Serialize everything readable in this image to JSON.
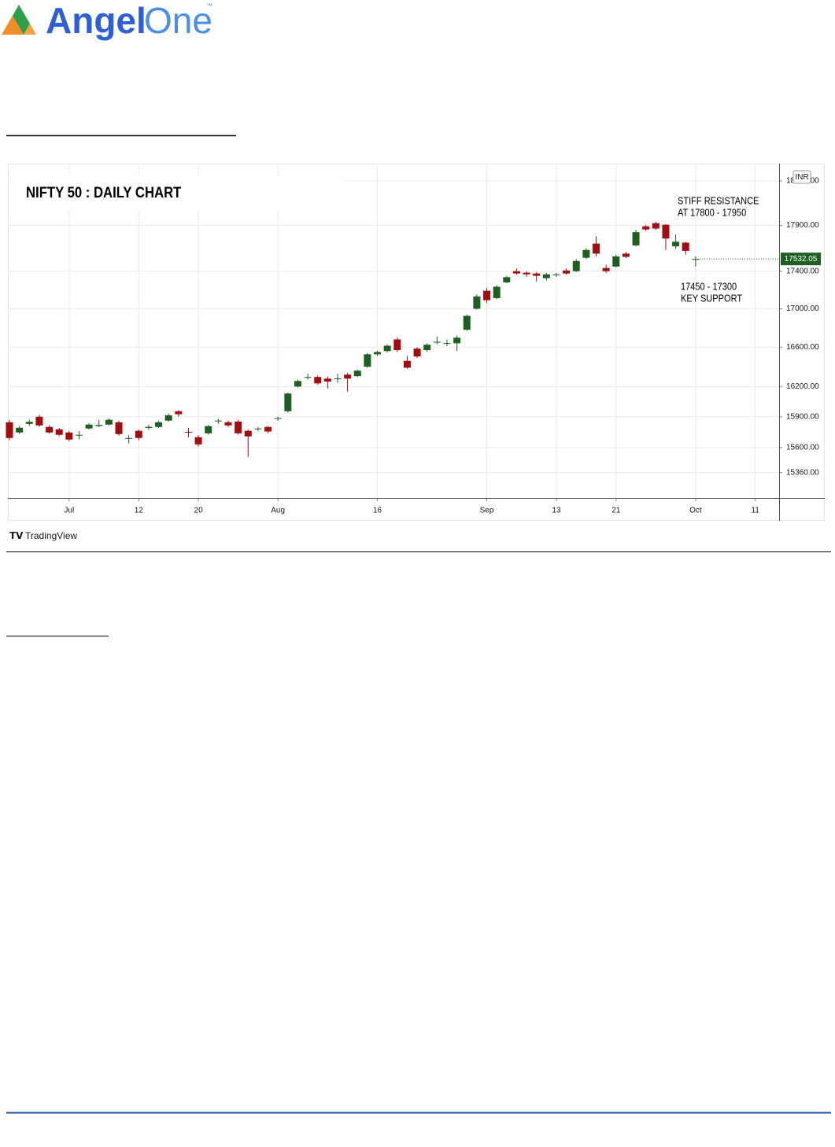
{
  "header": {
    "logo": {
      "part1": "Angel",
      "part2": "One",
      "mark": "™"
    }
  },
  "chart_data": {
    "type": "candlestick",
    "title": "NIFTY 50 : DAILY CHART",
    "annotations": [
      {
        "lines": [
          "STIFF RESISTANCE",
          "AT 17800 - 17950"
        ]
      },
      {
        "lines": [
          "17450 - 17300",
          "KEY SUPPORT"
        ]
      }
    ],
    "currency": "INR",
    "last_price": 17532.05,
    "open": [
      15846,
      15746,
      15830,
      15900,
      15800,
      15777,
      15746,
      15720,
      15785,
      15810,
      15823,
      15846,
      15685,
      15762,
      15790,
      15800,
      15862,
      15955,
      15752,
      15700,
      15738,
      15855,
      15846,
      15853,
      15762,
      15778,
      15800,
      15880,
      15955,
      16200,
      16290,
      16296,
      16280,
      16275,
      16320,
      16305,
      16400,
      16527,
      16560,
      16680,
      16460,
      16585,
      16570,
      16650,
      16638,
      16640,
      16780,
      17000,
      17190,
      17112,
      17280,
      17400,
      17384,
      17375,
      17325,
      17360,
      17408,
      17400,
      17545,
      17700,
      17434,
      17450,
      17590,
      17680,
      17890,
      17925,
      17908,
      17670,
      17710,
      17530
    ],
    "high": [
      15870,
      15810,
      15870,
      15920,
      15815,
      15790,
      15760,
      15760,
      15835,
      15870,
      15885,
      15860,
      15720,
      15775,
      15820,
      15860,
      15930,
      15965,
      15790,
      15720,
      15820,
      15880,
      15860,
      15870,
      15775,
      15800,
      15810,
      15900,
      16140,
      16270,
      16330,
      16310,
      16300,
      16330,
      16340,
      16370,
      16540,
      16565,
      16630,
      16700,
      16510,
      16600,
      16640,
      16710,
      16680,
      16720,
      16940,
      17150,
      17220,
      17250,
      17350,
      17430,
      17400,
      17390,
      17380,
      17380,
      17430,
      17530,
      17650,
      17780,
      17470,
      17580,
      17610,
      17850,
      17905,
      17940,
      17915,
      17800,
      17720,
      17560
    ],
    "low": [
      15670,
      15730,
      15810,
      15800,
      15735,
      15710,
      15660,
      15680,
      15775,
      15800,
      15815,
      15715,
      15640,
      15670,
      15770,
      15790,
      15850,
      15900,
      15700,
      15610,
      15725,
      15830,
      15800,
      15725,
      15510,
      15760,
      15740,
      15860,
      15940,
      16190,
      16270,
      16220,
      16180,
      16240,
      16150,
      16295,
      16390,
      16510,
      16545,
      16550,
      16380,
      16490,
      16555,
      16630,
      16610,
      16560,
      16770,
      16990,
      17060,
      17100,
      17270,
      17360,
      17340,
      17290,
      17300,
      17340,
      17360,
      17390,
      17530,
      17560,
      17380,
      17440,
      17540,
      17670,
      17840,
      17850,
      17630,
      17640,
      17580,
      17450
    ],
    "close": [
      15692,
      15792,
      15850,
      15815,
      15746,
      15723,
      15677,
      15723,
      15823,
      15820,
      15870,
      15730,
      15692,
      15692,
      15800,
      15846,
      15915,
      15925,
      15745,
      15630,
      15808,
      15862,
      15815,
      15738,
      15708,
      15785,
      15755,
      15887,
      16130,
      16256,
      16296,
      16232,
      16250,
      16282,
      16280,
      16360,
      16527,
      16550,
      16615,
      16570,
      16390,
      16505,
      16625,
      16655,
      16642,
      16698,
      16925,
      17130,
      17090,
      17233,
      17335,
      17375,
      17366,
      17350,
      17366,
      17366,
      17375,
      17510,
      17630,
      17590,
      17400,
      17560,
      17555,
      17825,
      17855,
      17865,
      17755,
      17720,
      17620,
      17532.05
    ],
    "up_color": "#1e5e20",
    "down_color": "#a30d11",
    "xlim": [
      -0.16,
      77.4
    ],
    "xticks": [
      {
        "value": 6,
        "label": "Jul"
      },
      {
        "value": 13,
        "label": "12"
      },
      {
        "value": 19,
        "label": "20"
      },
      {
        "value": 27,
        "label": "Aug"
      },
      {
        "value": 37,
        "label": "16"
      },
      {
        "value": 48,
        "label": "Sep"
      },
      {
        "value": 55,
        "label": "13"
      },
      {
        "value": 61,
        "label": "21"
      },
      {
        "value": 69,
        "label": "Oct"
      },
      {
        "value": 75,
        "label": "11"
      }
    ],
    "ylim": [
      15120,
      18580
    ],
    "yticks": [
      {
        "value": 15360,
        "label": "15360.00"
      },
      {
        "value": 15600,
        "label": "15600.00"
      },
      {
        "value": 15900,
        "label": "15900.00"
      },
      {
        "value": 16200,
        "label": "16200.00"
      },
      {
        "value": 16600,
        "label": "16600.00"
      },
      {
        "value": 17000,
        "label": "17000.00"
      },
      {
        "value": 17400,
        "label": "17400.00"
      },
      {
        "value": 17900,
        "label": "17900.00"
      },
      {
        "value": 18400,
        "label": "18400.00"
      }
    ],
    "log_scale": true,
    "grid": true
  },
  "footer": {
    "source": "TradingView"
  }
}
